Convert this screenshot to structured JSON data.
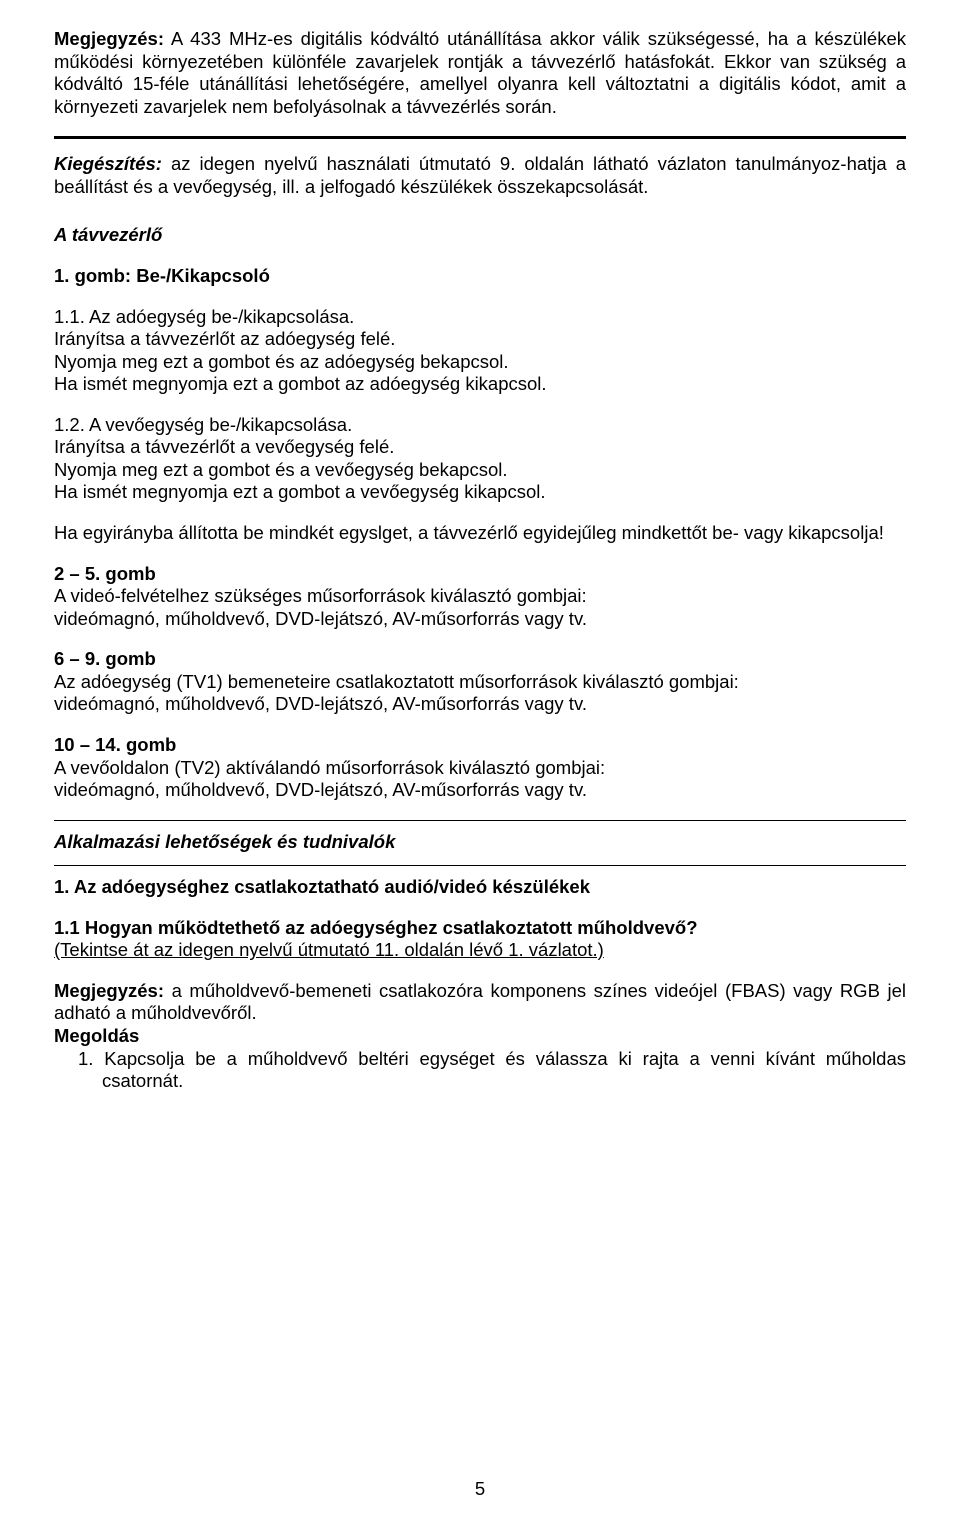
{
  "page_number": "5",
  "note1": {
    "label": "Megjegyzés:",
    "text": " A 433 MHz-es digitális kódváltó utánállítása akkor válik szükségessé, ha a készülékek működési környezetében különféle zavarjelek rontják a távvezérlő hatásfokát. Ekkor van szükség a kódváltó 15-féle utánállítási lehetőségére, amellyel olyanra kell változtatni a digitális kódot, amit a környezeti zavarjelek nem befolyásolnak a távvezérlés során."
  },
  "supplement": {
    "label": "Kiegészítés:",
    "text": " az idegen nyelvű használati útmutató 9. oldalán látható vázlaton tanulmányoz-hatja a beállítást és a vevőegység, ill. a jelfogadó készülékek összekapcsolását."
  },
  "remote_heading": "A távvezérlő",
  "btn1_heading": "1. gomb: Be-/Kikapcsoló",
  "btn1_1": {
    "title": "1.1. Az adóegység be-/kikapcsolása.",
    "l1": "Irányítsa a távvezérlőt az adóegység felé.",
    "l2": "Nyomja meg ezt a gombot és az adóegység bekapcsol.",
    "l3": "Ha ismét megnyomja ezt a gombot az adóegység kikapcsol."
  },
  "btn1_2": {
    "title": "1.2. A vevőegység be-/kikapcsolása.",
    "l1": "Irányítsa a távvezérlőt a vevőegység felé.",
    "l2": "Nyomja meg ezt a gombot és a vevőegység bekapcsol.",
    "l3": "Ha ismét megnyomja ezt a gombot a vevőegység kikapcsol."
  },
  "btn1_note": "Ha egyirányba állította be mindkét egyslget, a távvezérlő egyidejűleg mindkettőt be- vagy kikapcsolja!",
  "btn25": {
    "title": "2 – 5. gomb",
    "l1": "A videó-felvételhez szükséges műsorforrások kiválasztó gombjai:",
    "l2": "videómagnó, műholdvevő, DVD-lejátszó, AV-műsorforrás vagy tv."
  },
  "btn69": {
    "title": "6 – 9. gomb",
    "l1": "Az adóegység (TV1) bemeneteire csatlakoztatott műsorforrások kiválasztó gombjai:",
    "l2": "videómagnó, műholdvevő, DVD-lejátszó, AV-műsorforrás vagy tv."
  },
  "btn1014": {
    "title": "10 – 14. gomb",
    "l1": "A vevőoldalon (TV2) aktíválandó műsorforrások kiválasztó gombjai:",
    "l2": "videómagnó, műholdvevő, DVD-lejátszó, AV-műsorforrás vagy tv."
  },
  "apps_heading": "Alkalmazási lehetőségek és tudnivalók",
  "sec1_heading": "1. Az adóegységhez csatlakoztatható audió/videó készülékek",
  "sec1_1_title": "1.1 Hogyan működtethető az adóegységhez csatlakoztatott műholdvevő?",
  "sec1_1_ref": "(Tekintse át az idegen nyelvű útmutató 11. oldalán lévő 1. vázlatot.)",
  "note2": {
    "label": "Megjegyzés:",
    "text": " a műholdvevő-bemeneti csatlakozóra komponens színes videójel (FBAS) vagy RGB jel adható a műholdvevőről."
  },
  "solution_label": "Megoldás",
  "solution_item": "1.  Kapcsolja be a műholdvevő beltéri egységet és válassza ki rajta a venni kívánt műholdas csatornát."
}
